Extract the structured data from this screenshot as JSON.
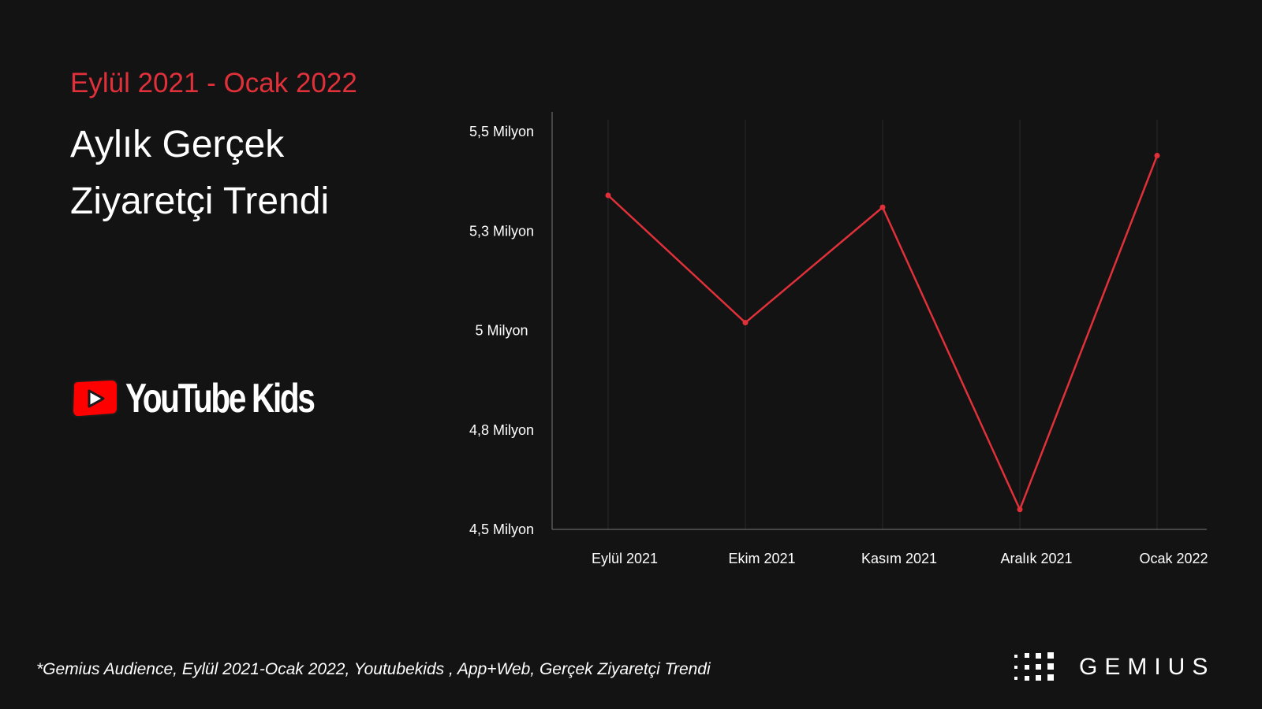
{
  "header": {
    "subtitle": "Eylül 2021 - Ocak 2022",
    "title_line1": "Aylık Gerçek",
    "title_line2": "Ziyaretçi Trendi"
  },
  "brand": {
    "logo_text": "YouTube Kids",
    "logo_color": "#ff0000"
  },
  "chart_data": {
    "type": "line",
    "categories": [
      "Eylül 2021",
      "Ekim 2021",
      "Kasım 2021",
      "Aralık 2021",
      "Ocak 2022"
    ],
    "series": [
      {
        "values": [
          5.34,
          5.02,
          5.31,
          4.55,
          5.44
        ]
      }
    ],
    "y_ticks": [
      {
        "value": 4.5,
        "label": "4,5 Milyon"
      },
      {
        "value": 4.75,
        "label": "4,8 Milyon"
      },
      {
        "value": 5.0,
        "label": "5 Milyon"
      },
      {
        "value": 5.25,
        "label": "5,3 Milyon"
      },
      {
        "value": 5.5,
        "label": "5,5 Milyon"
      }
    ],
    "ylim": [
      4.5,
      5.55
    ],
    "grid": "vertical-only",
    "line_color": "#e0303a",
    "title": "",
    "xlabel": "",
    "ylabel": ""
  },
  "footer": {
    "note": "*Gemius Audience, Eylül 2021-Ocak 2022, Youtubekids , App+Web, Gerçek Ziyaretçi Trendi",
    "company": "GEMIUS"
  }
}
